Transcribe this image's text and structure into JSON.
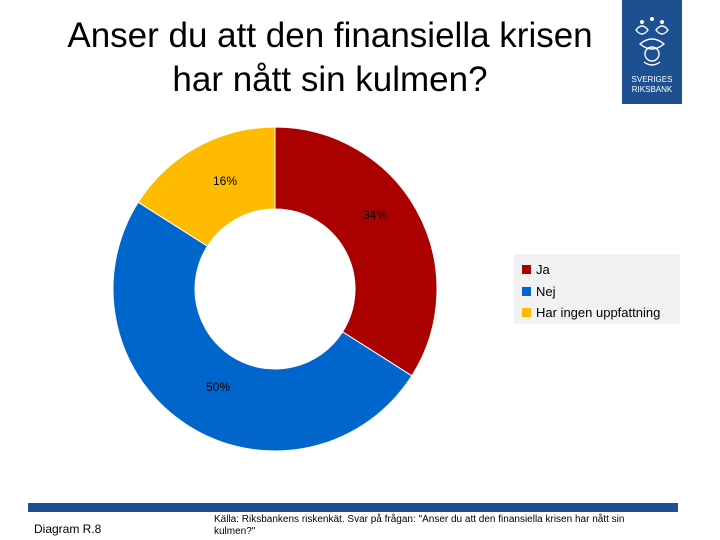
{
  "title": "Anser du att den finansiella krisen har nått sin kulmen?",
  "logo": {
    "icon": "riksbank-crest-icon",
    "text_line1": "SVERIGES",
    "text_line2": "RIKSBANK",
    "background": "#1d4f91"
  },
  "chart_data": {
    "type": "pie",
    "title": "",
    "categories": [
      "Ja",
      "Nej",
      "Har ingen uppfattning"
    ],
    "values": [
      34,
      50,
      16
    ],
    "labels": [
      "34%",
      "50%",
      "16%"
    ],
    "colors": [
      "#aa0000",
      "#0066cc",
      "#ffbb00"
    ],
    "donut": true,
    "legend_position": "right"
  },
  "footer": {
    "diagram_label": "Diagram R.8",
    "source": "Källa: Riksbankens riskenkät. Svar på frågan: \"Anser du att den finansiella krisen har nått sin kulmen?\""
  }
}
